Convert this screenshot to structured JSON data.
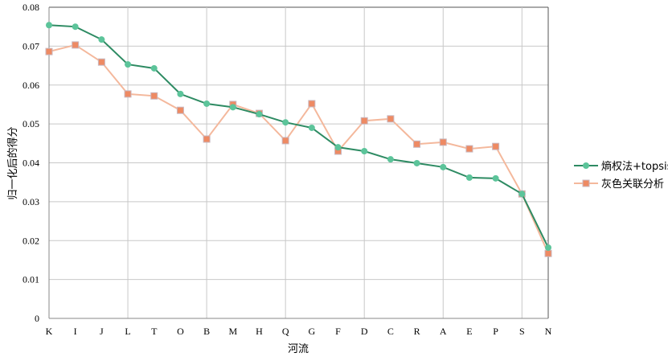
{
  "chart_data": {
    "type": "line",
    "xlabel": "河流",
    "ylabel": "归一化后的得分",
    "ylim": [
      0,
      0.08
    ],
    "yticks": [
      "0",
      "0.01",
      "0.02",
      "0.03",
      "0.04",
      "0.05",
      "0.06",
      "0.07",
      "0.08"
    ],
    "categories": [
      "K",
      "I",
      "J",
      "L",
      "T",
      "O",
      "B",
      "M",
      "H",
      "Q",
      "G",
      "F",
      "D",
      "C",
      "R",
      "A",
      "E",
      "P",
      "S",
      "N"
    ],
    "grid": true,
    "legend": "right",
    "series": [
      {
        "name": "熵权法+topsis",
        "color": "#2e8b63",
        "marker_color": "#5cc49a",
        "marker": "circle",
        "values": [
          0.0754,
          0.075,
          0.0717,
          0.0653,
          0.0643,
          0.0577,
          0.0552,
          0.0543,
          0.0525,
          0.0504,
          0.049,
          0.044,
          0.043,
          0.0409,
          0.0399,
          0.0389,
          0.0362,
          0.036,
          0.032,
          0.0182
        ]
      },
      {
        "name": "灰色关联分析",
        "color": "#f4b89c",
        "marker_color": "#ee8a63",
        "marker": "square",
        "values": [
          0.0686,
          0.0703,
          0.0659,
          0.0577,
          0.0572,
          0.0535,
          0.0461,
          0.055,
          0.0527,
          0.0457,
          0.0552,
          0.043,
          0.0508,
          0.0513,
          0.0448,
          0.0453,
          0.0436,
          0.0442,
          0.032,
          0.0167
        ]
      }
    ]
  }
}
